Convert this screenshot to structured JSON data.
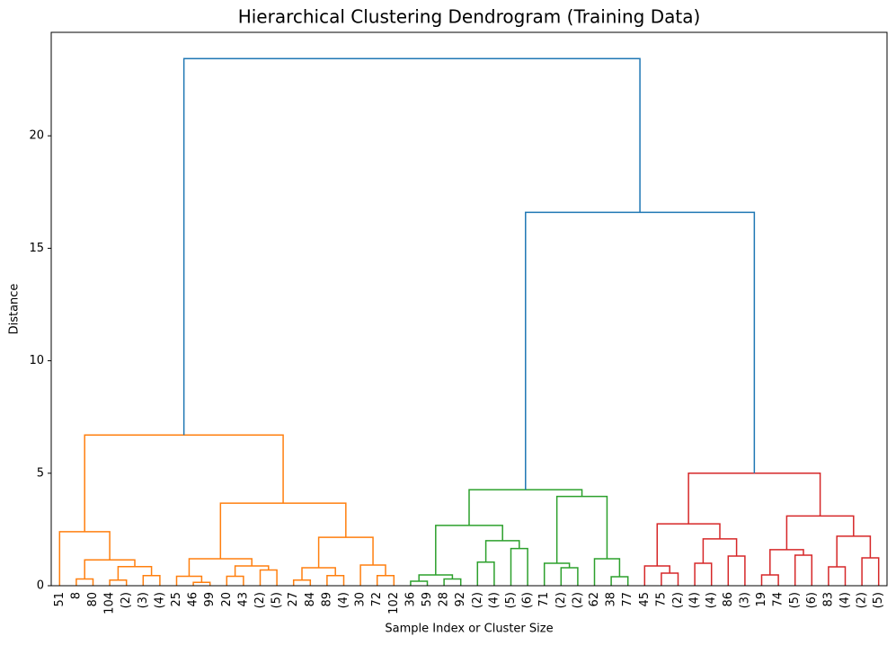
{
  "chart_data": {
    "type": "dendrogram",
    "title": "Hierarchical Clustering Dendrogram (Training Data)",
    "xlabel": "Sample Index or Cluster Size",
    "ylabel": "Distance",
    "categories": [
      "51",
      "8",
      "80",
      "104",
      "(2)",
      "(3)",
      "(4)",
      "25",
      "46",
      "99",
      "20",
      "43",
      "(2)",
      "(5)",
      "27",
      "84",
      "89",
      "(4)",
      "30",
      "72",
      "102",
      "36",
      "59",
      "28",
      "92",
      "(2)",
      "(4)",
      "(5)",
      "(6)",
      "71",
      "(2)",
      "(2)",
      "62",
      "38",
      "77",
      "45",
      "75",
      "(2)",
      "(4)",
      "(4)",
      "86",
      "(3)",
      "19",
      "74",
      "(5)",
      "(6)",
      "83",
      "(4)",
      "(2)",
      "(5)"
    ],
    "xlim": [
      0,
      500
    ],
    "ylim": [
      0,
      24.6
    ],
    "yticks": [
      0,
      5,
      10,
      15,
      20
    ],
    "links": [
      {
        "x": [
          15,
          25
        ],
        "h": [
          0,
          0.3,
          0
        ],
        "color": "#ff7f0e"
      },
      {
        "x": [
          35,
          45
        ],
        "h": [
          0,
          0.25,
          0
        ],
        "color": "#ff7f0e"
      },
      {
        "x": [
          55,
          65
        ],
        "h": [
          0,
          0.45,
          0
        ],
        "color": "#ff7f0e"
      },
      {
        "x": [
          40,
          60
        ],
        "h": [
          0.25,
          0.85,
          0.45
        ],
        "color": "#ff7f0e"
      },
      {
        "x": [
          20,
          50
        ],
        "h": [
          0.3,
          1.15,
          0.85
        ],
        "color": "#ff7f0e"
      },
      {
        "x": [
          5,
          35
        ],
        "h": [
          0,
          2.4,
          1.15
        ],
        "color": "#ff7f0e"
      },
      {
        "x": [
          85,
          95
        ],
        "h": [
          0,
          0.15,
          0
        ],
        "color": "#ff7f0e"
      },
      {
        "x": [
          75,
          90
        ],
        "h": [
          0,
          0.42,
          0.15
        ],
        "color": "#ff7f0e"
      },
      {
        "x": [
          105,
          115
        ],
        "h": [
          0,
          0.42,
          0
        ],
        "color": "#ff7f0e"
      },
      {
        "x": [
          125,
          135
        ],
        "h": [
          0,
          0.7,
          0
        ],
        "color": "#ff7f0e"
      },
      {
        "x": [
          110,
          130
        ],
        "h": [
          0.42,
          0.88,
          0.7
        ],
        "color": "#ff7f0e"
      },
      {
        "x": [
          82.5,
          120
        ],
        "h": [
          0.42,
          1.2,
          0.88
        ],
        "color": "#ff7f0e"
      },
      {
        "x": [
          145,
          155
        ],
        "h": [
          0,
          0.25,
          0
        ],
        "color": "#ff7f0e"
      },
      {
        "x": [
          165,
          175
        ],
        "h": [
          0,
          0.45,
          0
        ],
        "color": "#ff7f0e"
      },
      {
        "x": [
          150,
          170
        ],
        "h": [
          0.25,
          0.8,
          0.45
        ],
        "color": "#ff7f0e"
      },
      {
        "x": [
          195,
          205
        ],
        "h": [
          0,
          0.45,
          0
        ],
        "color": "#ff7f0e"
      },
      {
        "x": [
          185,
          200
        ],
        "h": [
          0,
          0.92,
          0.45
        ],
        "color": "#ff7f0e"
      },
      {
        "x": [
          160,
          192.5
        ],
        "h": [
          0.8,
          2.15,
          0.92
        ],
        "color": "#ff7f0e"
      },
      {
        "x": [
          101.25,
          176.25
        ],
        "h": [
          1.2,
          3.67,
          2.15
        ],
        "color": "#ff7f0e"
      },
      {
        "x": [
          20,
          138.75
        ],
        "h": [
          2.4,
          6.7,
          3.67
        ],
        "color": "#ff7f0e"
      },
      {
        "x": [
          215,
          225
        ],
        "h": [
          0,
          0.2,
          0
        ],
        "color": "#2ca02c"
      },
      {
        "x": [
          235,
          245
        ],
        "h": [
          0,
          0.3,
          0
        ],
        "color": "#2ca02c"
      },
      {
        "x": [
          220,
          240
        ],
        "h": [
          0.2,
          0.48,
          0.3
        ],
        "color": "#2ca02c"
      },
      {
        "x": [
          255,
          265
        ],
        "h": [
          0,
          1.05,
          0
        ],
        "color": "#2ca02c"
      },
      {
        "x": [
          275,
          285
        ],
        "h": [
          0,
          1.65,
          0
        ],
        "color": "#2ca02c"
      },
      {
        "x": [
          260,
          280
        ],
        "h": [
          1.05,
          2.0,
          1.65
        ],
        "color": "#2ca02c"
      },
      {
        "x": [
          230,
          270
        ],
        "h": [
          0.48,
          2.68,
          2.0
        ],
        "color": "#2ca02c"
      },
      {
        "x": [
          305,
          315
        ],
        "h": [
          0,
          0.8,
          0
        ],
        "color": "#2ca02c"
      },
      {
        "x": [
          295,
          310
        ],
        "h": [
          0,
          1.0,
          0.8
        ],
        "color": "#2ca02c"
      },
      {
        "x": [
          335,
          345
        ],
        "h": [
          0,
          0.4,
          0
        ],
        "color": "#2ca02c"
      },
      {
        "x": [
          325,
          340
        ],
        "h": [
          0,
          1.2,
          0.4
        ],
        "color": "#2ca02c"
      },
      {
        "x": [
          302.5,
          332.5
        ],
        "h": [
          1.0,
          3.97,
          1.2
        ],
        "color": "#2ca02c"
      },
      {
        "x": [
          250,
          317.5
        ],
        "h": [
          2.68,
          4.27,
          3.97
        ],
        "color": "#2ca02c"
      },
      {
        "x": [
          365,
          375
        ],
        "h": [
          0,
          0.56,
          0
        ],
        "color": "#d62728"
      },
      {
        "x": [
          355,
          370
        ],
        "h": [
          0,
          0.88,
          0.56
        ],
        "color": "#d62728"
      },
      {
        "x": [
          385,
          395
        ],
        "h": [
          0,
          1.0,
          0
        ],
        "color": "#d62728"
      },
      {
        "x": [
          405,
          415
        ],
        "h": [
          0,
          1.32,
          0
        ],
        "color": "#d62728"
      },
      {
        "x": [
          390,
          410
        ],
        "h": [
          1.0,
          2.08,
          1.32
        ],
        "color": "#d62728"
      },
      {
        "x": [
          362.5,
          400
        ],
        "h": [
          0.88,
          2.75,
          2.08
        ],
        "color": "#d62728"
      },
      {
        "x": [
          425,
          435
        ],
        "h": [
          0,
          0.48,
          0
        ],
        "color": "#d62728"
      },
      {
        "x": [
          445,
          455
        ],
        "h": [
          0,
          1.36,
          0
        ],
        "color": "#d62728"
      },
      {
        "x": [
          430,
          450
        ],
        "h": [
          0.48,
          1.6,
          1.36
        ],
        "color": "#d62728"
      },
      {
        "x": [
          465,
          475
        ],
        "h": [
          0,
          0.84,
          0
        ],
        "color": "#d62728"
      },
      {
        "x": [
          485,
          495
        ],
        "h": [
          0,
          1.24,
          0
        ],
        "color": "#d62728"
      },
      {
        "x": [
          470,
          490
        ],
        "h": [
          0.84,
          2.2,
          1.24
        ],
        "color": "#d62728"
      },
      {
        "x": [
          440,
          480
        ],
        "h": [
          1.6,
          3.1,
          2.2
        ],
        "color": "#d62728"
      },
      {
        "x": [
          381.25,
          460
        ],
        "h": [
          2.75,
          5.0,
          3.1
        ],
        "color": "#d62728"
      },
      {
        "x": [
          283.75,
          420.625
        ],
        "h": [
          4.27,
          16.6,
          5.0
        ],
        "color": "#1f77b4"
      },
      {
        "x": [
          79.375,
          352.1875
        ],
        "h": [
          6.7,
          23.43,
          16.6
        ],
        "color": "#1f77b4"
      }
    ]
  }
}
